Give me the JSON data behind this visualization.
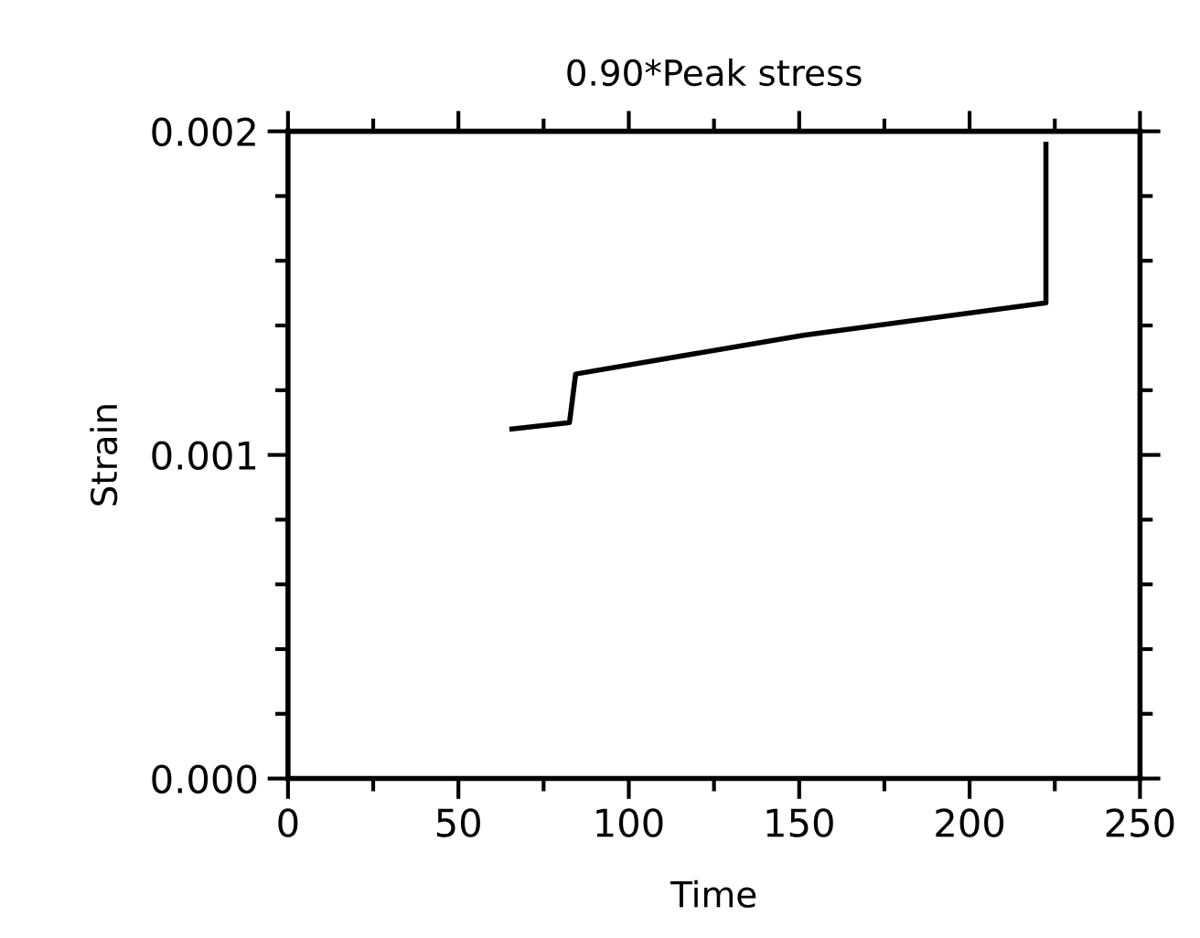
{
  "chart_data": {
    "type": "line",
    "title": "0.90*Peak stress",
    "xlabel": "Time",
    "ylabel": "Strain",
    "x": [
      65.7,
      82.6,
      84.4,
      151.2,
      222.4,
      222.4
    ],
    "values": [
      0.00108,
      0.0011,
      0.00125,
      0.00137,
      0.00147,
      0.00196
    ],
    "color": "#000000",
    "marker": "none",
    "line_style": "solid",
    "grid": false,
    "legend": false,
    "xlim": [
      0,
      250
    ],
    "ylim": [
      0,
      0.002
    ],
    "xticks": [
      0,
      {
        "value": 25,
        "label": null
      },
      50,
      {
        "value": 75,
        "label": null
      },
      100,
      {
        "value": 125,
        "label": null
      },
      150,
      {
        "value": 175,
        "label": null
      },
      200,
      {
        "value": 225,
        "label": null
      },
      250
    ],
    "yticks": [
      {
        "value": 0,
        "label": "0.000"
      },
      {
        "value": 0.0002,
        "label": null
      },
      {
        "value": 0.0004,
        "label": null
      },
      {
        "value": 0.0006,
        "label": null
      },
      {
        "value": 0.0008,
        "label": null
      },
      {
        "value": 0.001,
        "label": "0.001"
      },
      {
        "value": 0.0012,
        "label": null
      },
      {
        "value": 0.0014,
        "label": null
      },
      {
        "value": 0.0016,
        "label": null
      },
      {
        "value": 0.0018,
        "label": null
      },
      {
        "value": 0.002,
        "label": "0.002"
      }
    ]
  }
}
